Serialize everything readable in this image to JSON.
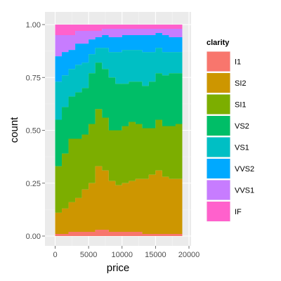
{
  "chart_data": {
    "type": "area",
    "stacking": "fill",
    "xlabel": "price",
    "ylabel": "count",
    "xlim": [
      0,
      20000
    ],
    "ylim": [
      0,
      1
    ],
    "x_ticks": [
      0,
      5000,
      10000,
      15000,
      20000
    ],
    "x_tick_labels": [
      "0",
      "5000",
      "10000",
      "15000",
      "20000"
    ],
    "y_ticks": [
      0,
      0.25,
      0.5,
      0.75,
      1
    ],
    "y_tick_labels": [
      "0.00",
      "0.25",
      "0.50",
      "0.75",
      "1.00"
    ],
    "grid": true,
    "legend": {
      "title": "clarity",
      "placement": "right"
    },
    "x": [
      0,
      1000,
      2000,
      3000,
      4000,
      5000,
      6000,
      7000,
      8000,
      9000,
      10000,
      11000,
      12000,
      13000,
      14000,
      15000,
      16000,
      17000,
      18000,
      19000
    ],
    "series": [
      {
        "name": "I1",
        "color": "#F8766D",
        "values": [
          0.01,
          0.01,
          0.02,
          0.02,
          0.02,
          0.02,
          0.03,
          0.03,
          0.02,
          0.02,
          0.02,
          0.02,
          0.02,
          0.01,
          0.01,
          0.01,
          0.01,
          0.01,
          0.01,
          0.01
        ]
      },
      {
        "name": "SI2",
        "color": "#CD9600",
        "values": [
          0.1,
          0.12,
          0.14,
          0.16,
          0.2,
          0.23,
          0.3,
          0.28,
          0.24,
          0.22,
          0.23,
          0.24,
          0.25,
          0.26,
          0.28,
          0.3,
          0.27,
          0.26,
          0.26,
          0.26
        ]
      },
      {
        "name": "SI1",
        "color": "#7CAE00",
        "values": [
          0.22,
          0.26,
          0.3,
          0.28,
          0.26,
          0.28,
          0.27,
          0.25,
          0.24,
          0.26,
          0.27,
          0.28,
          0.26,
          0.24,
          0.22,
          0.24,
          0.24,
          0.25,
          0.26,
          0.26
        ]
      },
      {
        "name": "VS2",
        "color": "#00BE67",
        "values": [
          0.22,
          0.22,
          0.2,
          0.22,
          0.22,
          0.24,
          0.22,
          0.23,
          0.25,
          0.22,
          0.2,
          0.19,
          0.2,
          0.2,
          0.22,
          0.22,
          0.24,
          0.25,
          0.24,
          0.24
        ]
      },
      {
        "name": "VS1",
        "color": "#00BFC4",
        "values": [
          0.18,
          0.15,
          0.13,
          0.13,
          0.12,
          0.09,
          0.07,
          0.1,
          0.12,
          0.15,
          0.16,
          0.15,
          0.15,
          0.16,
          0.14,
          0.12,
          0.11,
          0.1,
          0.1,
          0.11
        ]
      },
      {
        "name": "VVS2",
        "color": "#00A9FF",
        "values": [
          0.12,
          0.11,
          0.09,
          0.1,
          0.09,
          0.07,
          0.05,
          0.06,
          0.07,
          0.07,
          0.07,
          0.07,
          0.07,
          0.08,
          0.08,
          0.07,
          0.08,
          0.07,
          0.07,
          0.07
        ]
      },
      {
        "name": "VVS1",
        "color": "#C77CFF",
        "values": [
          0.1,
          0.08,
          0.07,
          0.06,
          0.06,
          0.04,
          0.03,
          0.03,
          0.04,
          0.04,
          0.03,
          0.03,
          0.03,
          0.03,
          0.03,
          0.02,
          0.03,
          0.04,
          0.04,
          0.03
        ]
      },
      {
        "name": "IF",
        "color": "#FF61CC",
        "values": [
          0.05,
          0.05,
          0.05,
          0.03,
          0.03,
          0.03,
          0.03,
          0.02,
          0.02,
          0.02,
          0.02,
          0.02,
          0.02,
          0.02,
          0.02,
          0.02,
          0.02,
          0.02,
          0.02,
          0.02
        ]
      }
    ]
  }
}
